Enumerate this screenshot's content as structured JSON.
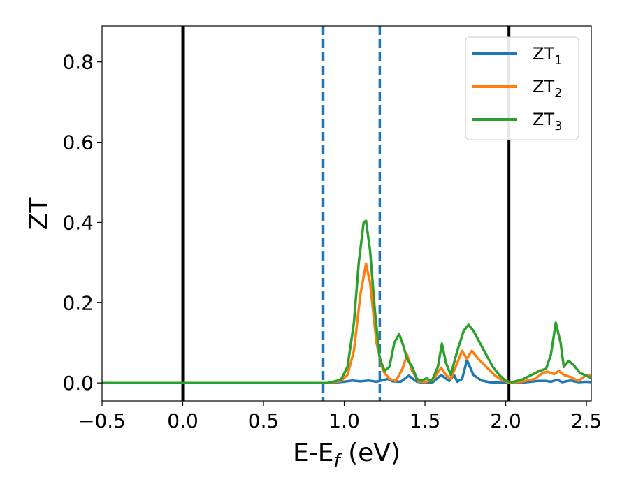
{
  "chart_data": {
    "type": "line",
    "title": "",
    "xlabel": {
      "main": "E-E",
      "sub": "f",
      "suffix": " (eV)"
    },
    "ylabel": "ZT",
    "xlim": [
      -0.5,
      2.53
    ],
    "ylim": [
      -0.045,
      0.89
    ],
    "grid": false,
    "legend_position": "top-right",
    "x_ticks": [
      -0.5,
      0.0,
      0.5,
      1.0,
      1.5,
      2.0,
      2.5
    ],
    "x_tick_labels": [
      "−0.5",
      "0.0",
      "0.5",
      "1.0",
      "1.5",
      "2.0",
      "2.5"
    ],
    "y_ticks": [
      0.0,
      0.2,
      0.4,
      0.6,
      0.8
    ],
    "y_tick_labels": [
      "0.0",
      "0.2",
      "0.4",
      "0.6",
      "0.8"
    ],
    "reference_lines": [
      {
        "x": 0.0,
        "style": "solid",
        "color": "#000000"
      },
      {
        "x": 2.02,
        "style": "solid",
        "color": "#000000"
      },
      {
        "x": 0.87,
        "style": "dashed",
        "color": "#1f77b4"
      },
      {
        "x": 1.22,
        "style": "dashed",
        "color": "#1f77b4"
      }
    ],
    "series": [
      {
        "name": {
          "main": "ZT",
          "sub": "1"
        },
        "color": "#1f77b4",
        "points": [
          [
            -0.5,
            0
          ],
          [
            0.9,
            0
          ],
          [
            1.0,
            0.003
          ],
          [
            1.05,
            0.006
          ],
          [
            1.1,
            0.004
          ],
          [
            1.15,
            0.006
          ],
          [
            1.2,
            0.003
          ],
          [
            1.27,
            0.01
          ],
          [
            1.3,
            0.004
          ],
          [
            1.35,
            0.003
          ],
          [
            1.4,
            0.018
          ],
          [
            1.45,
            0.003
          ],
          [
            1.5,
            0.0
          ],
          [
            1.55,
            0.002
          ],
          [
            1.6,
            0.02
          ],
          [
            1.65,
            0.005
          ],
          [
            1.68,
            0.02
          ],
          [
            1.7,
            0.003
          ],
          [
            1.73,
            0.01
          ],
          [
            1.76,
            0.057
          ],
          [
            1.8,
            0.02
          ],
          [
            1.85,
            0.006
          ],
          [
            1.9,
            0.002
          ],
          [
            2.0,
            0.0
          ],
          [
            2.1,
            0.001
          ],
          [
            2.2,
            0.005
          ],
          [
            2.25,
            0.005
          ],
          [
            2.28,
            0.003
          ],
          [
            2.32,
            0.008
          ],
          [
            2.35,
            0.002
          ],
          [
            2.4,
            0.006
          ],
          [
            2.45,
            0.002
          ],
          [
            2.5,
            0.003
          ],
          [
            2.53,
            0.002
          ]
        ]
      },
      {
        "name": {
          "main": "ZT",
          "sub": "2"
        },
        "color": "#ff7f0e",
        "points": [
          [
            -0.5,
            0
          ],
          [
            0.9,
            0
          ],
          [
            0.98,
            0.005
          ],
          [
            1.02,
            0.02
          ],
          [
            1.06,
            0.08
          ],
          [
            1.1,
            0.22
          ],
          [
            1.135,
            0.297
          ],
          [
            1.16,
            0.25
          ],
          [
            1.2,
            0.1
          ],
          [
            1.24,
            0.03
          ],
          [
            1.28,
            0.01
          ],
          [
            1.32,
            0.005
          ],
          [
            1.36,
            0.035
          ],
          [
            1.39,
            0.07
          ],
          [
            1.42,
            0.03
          ],
          [
            1.46,
            0.004
          ],
          [
            1.5,
            0.002
          ],
          [
            1.55,
            0.008
          ],
          [
            1.6,
            0.038
          ],
          [
            1.63,
            0.02
          ],
          [
            1.66,
            0.01
          ],
          [
            1.7,
            0.05
          ],
          [
            1.73,
            0.08
          ],
          [
            1.76,
            0.06
          ],
          [
            1.79,
            0.08
          ],
          [
            1.83,
            0.06
          ],
          [
            1.88,
            0.04
          ],
          [
            1.93,
            0.02
          ],
          [
            1.97,
            0.008
          ],
          [
            2.02,
            0.001
          ],
          [
            2.1,
            0.003
          ],
          [
            2.18,
            0.01
          ],
          [
            2.23,
            0.025
          ],
          [
            2.26,
            0.028
          ],
          [
            2.3,
            0.022
          ],
          [
            2.33,
            0.03
          ],
          [
            2.36,
            0.02
          ],
          [
            2.4,
            0.015
          ],
          [
            2.45,
            0.005
          ],
          [
            2.5,
            0.02
          ],
          [
            2.53,
            0.018
          ]
        ]
      },
      {
        "name": {
          "main": "ZT",
          "sub": "3"
        },
        "color": "#2ca02c",
        "points": [
          [
            -0.5,
            0
          ],
          [
            0.9,
            0
          ],
          [
            0.98,
            0.008
          ],
          [
            1.02,
            0.04
          ],
          [
            1.06,
            0.15
          ],
          [
            1.09,
            0.3
          ],
          [
            1.12,
            0.4
          ],
          [
            1.135,
            0.404
          ],
          [
            1.16,
            0.33
          ],
          [
            1.19,
            0.18
          ],
          [
            1.22,
            0.06
          ],
          [
            1.25,
            0.03
          ],
          [
            1.28,
            0.04
          ],
          [
            1.31,
            0.1
          ],
          [
            1.34,
            0.122
          ],
          [
            1.36,
            0.1
          ],
          [
            1.39,
            0.06
          ],
          [
            1.42,
            0.04
          ],
          [
            1.45,
            0.01
          ],
          [
            1.48,
            0.005
          ],
          [
            1.51,
            0.012
          ],
          [
            1.54,
            0.003
          ],
          [
            1.58,
            0.04
          ],
          [
            1.605,
            0.098
          ],
          [
            1.63,
            0.05
          ],
          [
            1.66,
            0.02
          ],
          [
            1.7,
            0.08
          ],
          [
            1.74,
            0.13
          ],
          [
            1.77,
            0.145
          ],
          [
            1.8,
            0.13
          ],
          [
            1.84,
            0.1
          ],
          [
            1.88,
            0.07
          ],
          [
            1.92,
            0.04
          ],
          [
            1.96,
            0.02
          ],
          [
            2.0,
            0.005
          ],
          [
            2.04,
            0.002
          ],
          [
            2.1,
            0.008
          ],
          [
            2.16,
            0.02
          ],
          [
            2.21,
            0.03
          ],
          [
            2.25,
            0.035
          ],
          [
            2.28,
            0.07
          ],
          [
            2.31,
            0.15
          ],
          [
            2.34,
            0.1
          ],
          [
            2.36,
            0.04
          ],
          [
            2.39,
            0.055
          ],
          [
            2.42,
            0.045
          ],
          [
            2.46,
            0.025
          ],
          [
            2.5,
            0.018
          ],
          [
            2.53,
            0.012
          ]
        ]
      }
    ]
  }
}
